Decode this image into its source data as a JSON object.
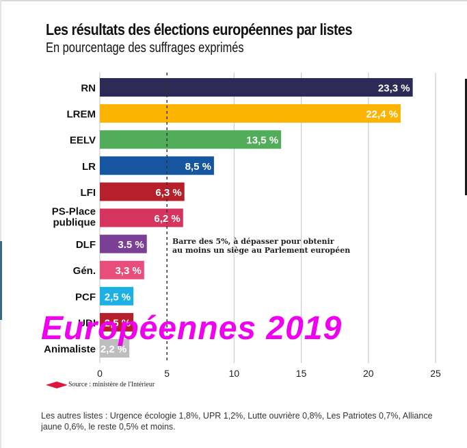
{
  "chart_data": {
    "type": "bar",
    "orientation": "horizontal",
    "title": "Les résultats des élections européennes par listes",
    "subtitle": "En pourcentage des suffrages exprimés",
    "categories": [
      "RN",
      "LREM",
      "EELV",
      "LR",
      "LFI",
      "PS-Place publique",
      "DLF",
      "Gén.",
      "PCF",
      "UDI",
      "Animaliste"
    ],
    "category_lines": [
      [
        "RN"
      ],
      [
        "LREM"
      ],
      [
        "EELV"
      ],
      [
        "LR"
      ],
      [
        "LFI"
      ],
      [
        "PS-Place",
        "publique"
      ],
      [
        "DLF"
      ],
      [
        "Gén."
      ],
      [
        "PCF"
      ],
      [
        "UDI"
      ],
      [
        "Animaliste"
      ]
    ],
    "values": [
      23.3,
      22.4,
      13.5,
      8.5,
      6.3,
      6.2,
      3.5,
      3.3,
      2.5,
      2.5,
      2.2
    ],
    "value_labels": [
      "23,3 %",
      "22,4 %",
      "13,5 %",
      "8,5 %",
      "6,3 %",
      "6,2 %",
      "3.5 %",
      "3,3 %",
      "2,5 %",
      "2,5 %",
      "2,2 %"
    ],
    "colors": [
      "#2d2a57",
      "#fdb400",
      "#52ad5a",
      "#1656a0",
      "#b5202a",
      "#d6335e",
      "#7b3f96",
      "#e84e7c",
      "#1cb0e4",
      "#b5202a",
      "#bdbdbd"
    ],
    "xlabel": "",
    "ylabel": "",
    "xlim": [
      0,
      25
    ],
    "xticks": [
      0,
      5,
      10,
      15,
      20,
      25
    ],
    "grid": true,
    "threshold": {
      "value": 5,
      "label_line1": "Barre des 5%, à dépasser pour obtenir",
      "label_line2": "au moins un siège au Parlement européen"
    }
  },
  "source": "Source : ministère de l'Intérieur",
  "note": "Les autres listes : Urgence écologie 1,8%, UPR 1,2%, Lutte ouvrière 0,8%, Les Patriotes 0,7%, Alliance jaune 0,6%, le reste 0,5% et moins.",
  "watermark": "Européennes 2019",
  "colors": {
    "watermark": "#f000f0",
    "source_diamond": "#e0143c",
    "grid": "#cccccc"
  }
}
